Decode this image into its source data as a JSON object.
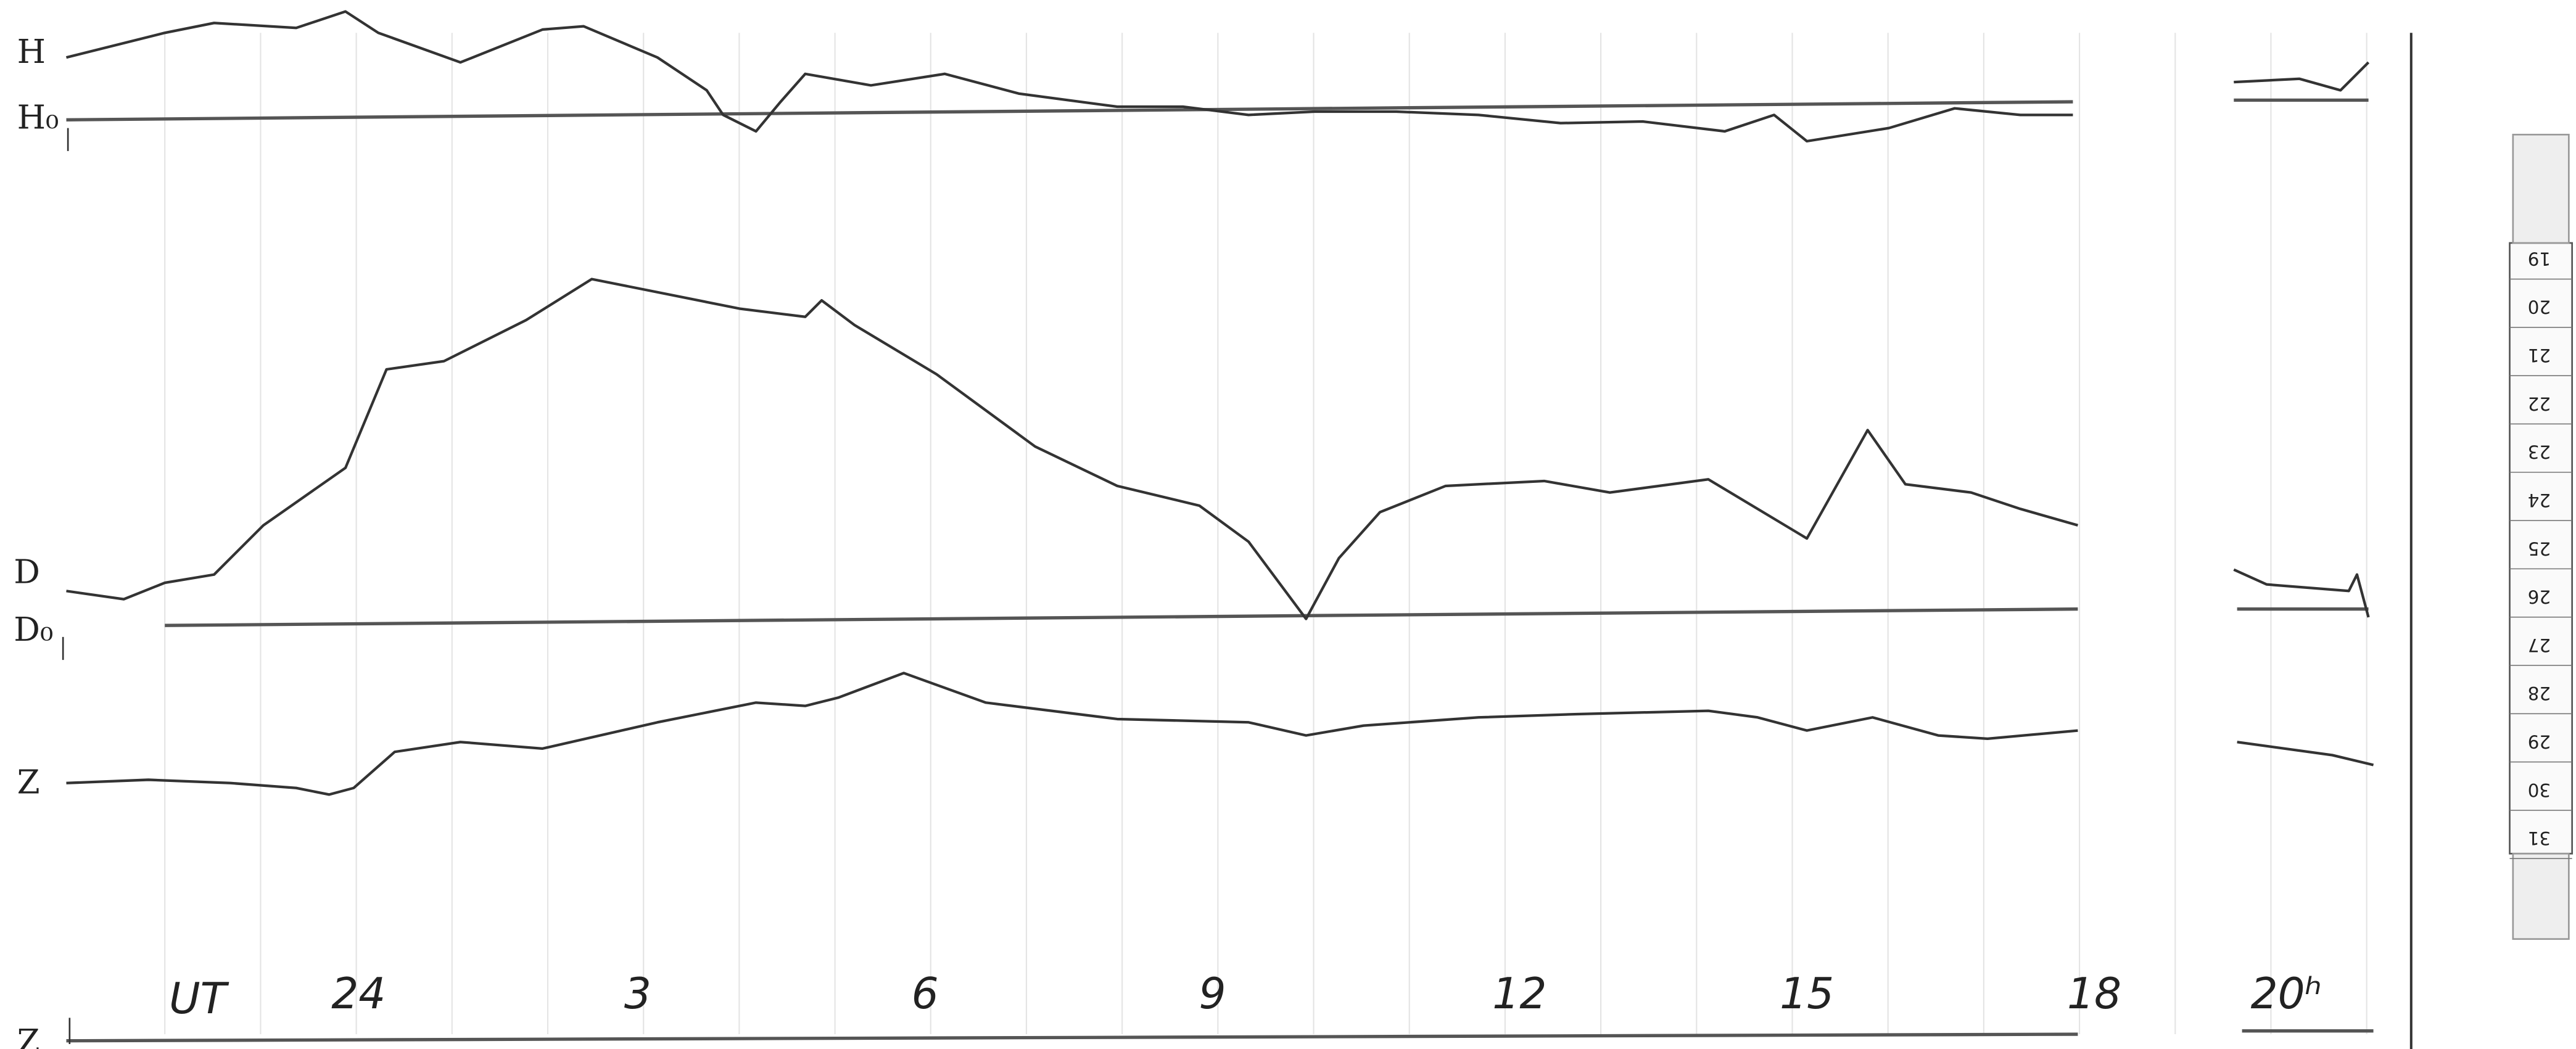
{
  "trace_labels": {
    "h": "H",
    "h0": "H₀",
    "d": "D",
    "d0": "D₀",
    "z": "Z",
    "z0": "Z"
  },
  "time_axis": {
    "label": "UT",
    "hours": [
      "24",
      "3",
      "6",
      "9",
      "12",
      "15",
      "18",
      "20ʰ"
    ]
  },
  "ruler": [
    "19",
    "20",
    "21",
    "22",
    "23",
    "24",
    "25",
    "26",
    "27",
    "28",
    "29",
    "30",
    "31"
  ]
}
